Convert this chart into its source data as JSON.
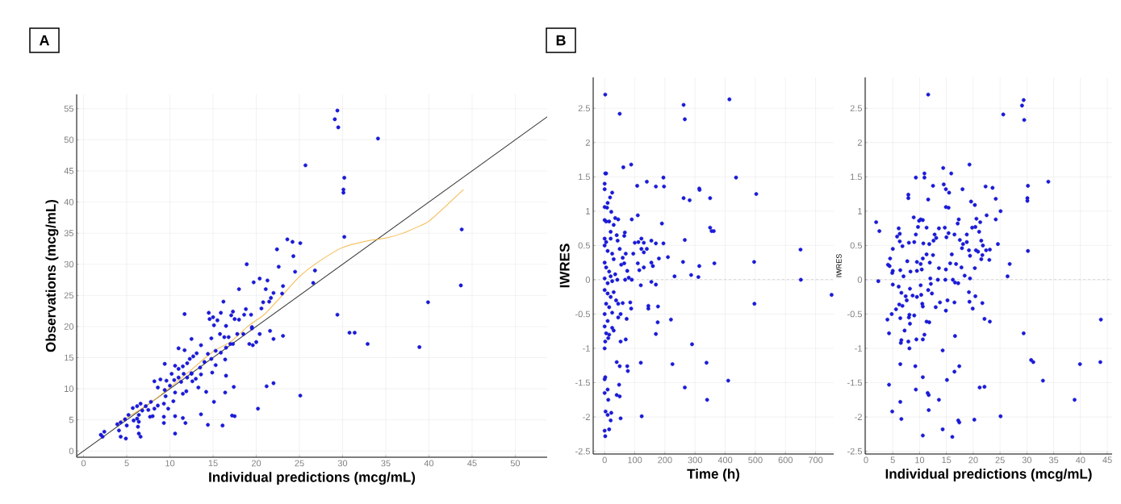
{
  "chart_data": [
    {
      "type": "scatter",
      "annotations": [
        "A"
      ],
      "xlabel": "Individual predictions (mcg/mL)",
      "ylabel": "Observations (mcg/mL)",
      "xlim": [
        -0.8,
        53.7
      ],
      "ylim": [
        -1,
        57.3
      ],
      "xticks": [
        0,
        5,
        10,
        15,
        20,
        25,
        30,
        35,
        40,
        45,
        50
      ],
      "yticks": [
        0,
        5,
        10,
        15,
        20,
        25,
        30,
        35,
        40,
        45,
        50,
        55
      ],
      "grid": true,
      "series": [
        {
          "type": "scatter",
          "marker": "circle",
          "color": "#1a1ad6",
          "x": [
            29.4,
            29.1,
            29.5,
            34.1,
            25.7,
            30.2,
            30.1,
            30.1,
            30.2,
            43.8,
            43.7,
            39.9,
            29.4,
            30.8,
            31.4,
            32.9,
            38.9,
            25.1,
            22,
            21.2,
            20.2,
            26.6,
            26.8,
            24.5,
            25.1,
            24.2,
            23.6,
            24.3,
            22.4,
            22.6,
            23.1,
            23,
            22,
            21.3,
            21.1,
            20.4,
            19.7,
            18.9,
            21.7,
            21.5,
            20.8,
            20.6,
            21.6,
            22,
            23.1,
            20.4,
            20,
            19.6,
            19.2,
            19.5,
            19.4,
            18.8,
            18.6,
            18,
            17.3,
            17.1,
            16.5,
            15.9,
            15.5,
            14.5,
            14.6,
            15,
            15.1,
            16.2,
            14.8,
            15.8,
            16.3,
            16.8,
            17.5,
            18,
            17.8,
            17.3,
            16.5,
            15.9,
            14.8,
            14.4,
            15.3,
            14.9,
            16.4,
            16.5,
            16.4,
            15.1,
            14.2,
            13.6,
            13.3,
            14.4,
            13.6,
            16.1,
            17.2,
            17.5,
            17.4,
            11.7,
            11.7,
            11,
            12.5,
            13.1,
            12.7,
            13.6,
            12.3,
            12,
            11.5,
            11,
            10.6,
            10.2,
            9.4,
            9.6,
            8.9,
            8.2,
            8.6,
            9.4,
            10,
            10.5,
            11,
            11.6,
            12,
            12.5,
            13,
            12.6,
            11.5,
            11.9,
            10.6,
            10.4,
            9.5,
            9.8,
            9.3,
            8.6,
            8.2,
            7.8,
            7.5,
            7.2,
            6.8,
            6.6,
            6.2,
            6.4,
            6.2,
            5.7,
            5.2,
            4.8,
            4.3,
            3.9,
            4.1,
            4.3,
            4.9,
            5,
            6.3,
            6.4,
            6.6,
            6.4,
            5.8,
            9.3,
            9.3,
            10.6,
            11.5,
            11.8,
            10.6,
            8,
            7.7,
            2,
            2.4,
            2.2,
            12.5,
            11.3,
            13.5,
            14,
            15.3,
            17,
            18.5,
            19.5
          ],
          "values": [
            54.7,
            53.3,
            52,
            50.2,
            45.9,
            43.9,
            42,
            41.5,
            34.4,
            35.6,
            26.6,
            23.9,
            21.9,
            19,
            19,
            17.2,
            16.7,
            8.9,
            10.9,
            10.4,
            6.8,
            27,
            29,
            28.8,
            33.4,
            33.6,
            34,
            31.3,
            32.4,
            29.6,
            26.5,
            25.3,
            25.4,
            27.4,
            26,
            27.7,
            27.1,
            30,
            24.6,
            24,
            23.9,
            22.9,
            19.3,
            18,
            18.5,
            18.8,
            17.5,
            17,
            17.2,
            19.7,
            21.9,
            22.8,
            21.9,
            26,
            22.4,
            21.8,
            20.1,
            22.2,
            21,
            22.2,
            21.2,
            21.5,
            20.2,
            24,
            18.1,
            18.8,
            18.3,
            18.3,
            21.2,
            21.1,
            18.8,
            17.2,
            16.6,
            15.8,
            14.8,
            15.6,
            13.8,
            12.6,
            14.7,
            12.1,
            9.4,
            7.9,
            9.5,
            12.3,
            10.2,
            4.2,
            5.9,
            4.1,
            5.7,
            5.6,
            10.3,
            22,
            16.2,
            16.5,
            18,
            15.7,
            15.2,
            17,
            14.8,
            14.1,
            13.6,
            13.2,
            13.7,
            12.4,
            14,
            11.3,
            11.5,
            11.2,
            10.2,
            9.8,
            10.5,
            11.4,
            11.8,
            12.4,
            11.8,
            12.5,
            11.6,
            11.2,
            9.2,
            9.6,
            9.4,
            8,
            8.8,
            6.8,
            7.6,
            7.3,
            6.8,
            7.9,
            6.6,
            7.2,
            6.5,
            7.6,
            7.2,
            5.8,
            5.2,
            6.9,
            5.8,
            5.1,
            4.6,
            4.3,
            3.3,
            2.3,
            2,
            4.1,
            3.9,
            2.8,
            2.3,
            4.7,
            4.9,
            5.5,
            4.5,
            5.6,
            5.3,
            4.5,
            2.8,
            5.6,
            5.5,
            2.6,
            3.1,
            2.3,
            12.4,
            11.1,
            13.4,
            14.3,
            16.1,
            17.2,
            18.8,
            19.9
          ]
        },
        {
          "type": "line",
          "color": "#333333",
          "x": [
            -0.8,
            53.7
          ],
          "values": [
            -0.8,
            53.7
          ]
        },
        {
          "type": "line",
          "color": "#f5b84a",
          "x": [
            4,
            8,
            12,
            15,
            17,
            19,
            20,
            21,
            23,
            25,
            27,
            30,
            33,
            35,
            37,
            39,
            40,
            42,
            44
          ],
          "values": [
            4.5,
            8,
            12.5,
            16,
            17.5,
            20,
            21,
            22,
            25,
            28,
            30.2,
            32.7,
            33.8,
            34.2,
            35,
            36.2,
            36.9,
            39.4,
            42
          ]
        }
      ]
    },
    {
      "type": "scatter",
      "annotations": [
        "B"
      ],
      "xlabel": "Time (h)",
      "ylabel": "IWRES",
      "xlim": [
        -38,
        760
      ],
      "ylim": [
        -2.54,
        2.95
      ],
      "xticks": [
        0,
        100,
        200,
        300,
        400,
        500,
        600,
        700
      ],
      "yticks": [
        -2.5,
        -2,
        -1.5,
        -1,
        -0.5,
        0,
        0.5,
        1,
        1.5,
        2,
        2.5
      ],
      "grid": true,
      "marker": "circle",
      "color": "#1a1ad6",
      "ref_lines": [
        {
          "axis": "y",
          "value": 0,
          "line_style": "dashed",
          "color": "#555555"
        }
      ],
      "x": [
        2,
        50,
        262,
        266,
        414,
        62,
        88,
        2,
        5,
        140,
        195,
        436,
        108,
        170,
        197,
        314,
        315,
        262,
        282,
        350,
        503,
        0,
        0,
        25,
        18,
        10,
        8,
        0,
        22,
        35,
        45,
        90,
        110,
        190,
        350,
        355,
        362,
        0,
        5,
        15,
        30,
        20,
        40,
        67,
        65,
        43,
        20,
        5,
        0,
        100,
        112,
        122,
        130,
        155,
        170,
        195,
        266,
        140,
        122,
        130,
        650,
        95,
        155,
        180,
        210,
        260,
        314,
        364,
        496,
        160,
        130,
        110,
        115,
        65,
        60,
        70,
        50,
        0,
        10,
        25,
        30,
        0,
        5,
        15,
        20,
        35,
        55,
        75,
        80,
        0,
        10,
        25,
        42,
        68,
        90,
        155,
        170,
        232,
        287,
        311,
        651,
        120,
        0,
        10,
        20,
        30,
        38,
        5,
        15,
        0,
        25,
        45,
        60,
        85,
        88,
        145,
        145,
        177,
        176,
        220,
        170,
        497,
        0,
        25,
        10,
        45,
        53,
        73,
        5,
        15,
        30,
        2,
        0,
        12,
        53,
        70,
        290,
        0,
        2,
        10,
        12,
        0,
        3,
        0,
        2,
        15,
        20,
        10,
        22,
        40,
        50,
        48,
        40,
        50,
        75,
        77,
        120,
        225,
        338,
        410,
        266,
        340,
        123,
        53,
        753
      ],
      "values": [
        2.7,
        2.42,
        2.55,
        2.34,
        2.63,
        1.64,
        1.68,
        1.55,
        1.55,
        1.43,
        1.49,
        1.49,
        1.37,
        1.36,
        1.36,
        1.33,
        1.31,
        1.19,
        1.16,
        1.19,
        1.25,
        1.4,
        1.32,
        1.27,
        1.2,
        1.12,
        1.05,
        1.06,
        0.99,
        0.9,
        0.88,
        0.88,
        0.94,
        0.82,
        0.76,
        0.71,
        0.71,
        0.87,
        0.85,
        0.85,
        0.8,
        0.7,
        0.65,
        0.69,
        0.64,
        0.57,
        0.6,
        0.55,
        0.6,
        0.54,
        0.55,
        0.6,
        0.54,
        0.57,
        0.53,
        0.53,
        0.58,
        0.45,
        0.45,
        0.4,
        0.44,
        0.38,
        0.25,
        0.31,
        0.33,
        0.26,
        0.2,
        0.24,
        0.26,
        0.2,
        0.18,
        0.24,
        0.14,
        0.24,
        0.32,
        0.38,
        0.45,
        0.5,
        0.42,
        0.38,
        0.3,
        0.25,
        0.18,
        0.12,
        0.05,
        0.08,
        0.22,
        0.13,
        0.03,
        0.02,
        -0.05,
        -0.02,
        0,
        0,
        0,
        -0.03,
        -0.07,
        0.05,
        0.07,
        0.04,
        0,
        -0.08,
        -0.15,
        -0.2,
        -0.25,
        -0.18,
        -0.3,
        -0.35,
        -0.4,
        -0.5,
        -0.48,
        -0.35,
        -0.34,
        -0.33,
        -0.42,
        -0.42,
        -0.38,
        -0.39,
        -0.62,
        -0.58,
        -0.79,
        -0.35,
        -0.68,
        -0.7,
        -0.6,
        -0.55,
        -0.5,
        -0.57,
        -0.78,
        -0.8,
        -0.74,
        -0.9,
        -1,
        -0.85,
        -0.9,
        -0.87,
        -0.94,
        -1.45,
        -1.42,
        -1.6,
        -1.75,
        -1.65,
        -1.92,
        -2.2,
        -2.28,
        -2.18,
        -2.05,
        -1.97,
        -1.94,
        -1.68,
        -1.7,
        -1.53,
        -1.2,
        -1.26,
        -1.26,
        -1.33,
        -1.21,
        -1.23,
        -1.21,
        -1.47,
        -1.57,
        -1.75,
        -1.99,
        -2.02,
        -0.22
      ]
    },
    {
      "type": "scatter",
      "xlabel": "Individual predictions (mcg/mL)",
      "ylabel": "IWRES",
      "xlim": [
        -0.15,
        45.9
      ],
      "ylim": [
        -2.54,
        2.95
      ],
      "xticks": [
        0,
        5,
        10,
        15,
        20,
        25,
        30,
        35,
        40,
        45
      ],
      "yticks": [
        -2.5,
        -2,
        -1.5,
        -1,
        -0.5,
        0,
        0.5,
        1,
        1.5,
        2,
        2.5
      ],
      "grid": true,
      "marker": "circle",
      "color": "#1a1ad6",
      "ref_lines": [
        {
          "axis": "y",
          "value": 0,
          "line_style": "dashed",
          "color": "#555555"
        }
      ],
      "x": [
        11.6,
        29.4,
        29.1,
        25.6,
        29.5,
        19.3,
        14.4,
        15.9,
        10.9,
        10.9,
        9.3,
        34,
        30.2,
        12.5,
        22.3,
        23.6,
        14.5,
        18,
        14.9,
        15.5,
        7.9,
        7.9,
        30.1,
        30.1,
        24.2,
        11.6,
        19.6,
        20.3,
        14.9,
        15.4,
        25.1,
        22.5,
        8.9,
        10.2,
        10.6,
        9.9,
        17.3,
        20.6,
        21.3,
        24.2,
        1.9,
        2.5,
        6.1,
        9.7,
        11.3,
        13.6,
        14.7,
        17.1,
        19.8,
        20.4,
        21.1,
        6.3,
        5.8,
        9.3,
        12.8,
        15.4,
        16.5,
        18.8,
        13.1,
        15,
        17.5,
        21.5,
        24.6,
        30.2,
        8,
        9,
        10.7,
        11.8,
        12.6,
        6.3,
        6.8,
        5,
        18.1,
        18.8,
        20.5,
        21.8,
        22.4,
        23.1,
        17.9,
        19.2,
        20.9,
        21.7,
        19.4,
        21.5,
        23,
        16,
        11.3,
        12.5,
        10.6,
        9.5,
        7.7,
        4.5,
        4.1,
        4.4,
        11.9,
        10.2,
        13.6,
        14.9,
        15.7,
        16.8,
        17.8,
        26.8,
        26.4,
        18.4,
        20.3,
        8.3,
        9.5,
        10.4,
        5,
        4.9,
        6.4,
        7,
        12,
        13.4,
        14.8,
        16.2,
        16.6,
        17.2,
        19.4,
        2.3,
        5,
        6.1,
        6.6,
        7.4,
        8.2,
        8.7,
        9.5,
        10.3,
        10.2,
        11.6,
        12.1,
        12.3,
        13.8,
        13,
        14.9,
        15.2,
        16.5,
        19.2,
        19.3,
        20.4,
        19.9,
        21.7,
        6.2,
        6.8,
        7.6,
        8.1,
        9,
        10.5,
        10.6,
        5.6,
        4.8,
        4,
        6.4,
        8,
        7.2,
        8.2,
        11.3,
        11.8,
        22.1,
        23.1,
        4.3,
        6.5,
        6.6,
        7.9,
        8.1,
        9.4,
        10.6,
        10.9,
        16.6,
        29.4,
        43.8,
        14.3,
        6.4,
        9.2,
        17.4,
        16.5,
        10.6,
        15.1,
        30.8,
        31.2,
        33,
        39.9,
        43.7,
        4.3,
        9.3,
        11.5,
        11.7,
        21.2,
        22.1,
        13.6,
        38.9,
        6.4,
        11.7,
        4.9,
        6.6,
        25.1,
        17.2,
        17.4,
        20.2,
        14.3,
        10.6,
        16.1
      ],
      "values": [
        2.7,
        2.62,
        2.54,
        2.41,
        2.33,
        1.68,
        1.63,
        1.55,
        1.55,
        1.49,
        1.49,
        1.43,
        1.37,
        1.37,
        1.36,
        1.34,
        1.39,
        1.32,
        1.32,
        1.27,
        1.24,
        1.19,
        1.19,
        1.15,
        1.18,
        1.17,
        1.14,
        1.09,
        1.06,
        1.05,
        1,
        0.94,
        0.91,
        0.88,
        0.87,
        0.86,
        0.88,
        0.89,
        0.84,
        0.88,
        0.84,
        0.71,
        0.75,
        0.77,
        0.76,
        0.75,
        0.76,
        0.82,
        0.76,
        0.77,
        0.7,
        0.67,
        0.63,
        0.66,
        0.66,
        0.68,
        0.66,
        0.66,
        0.61,
        0.62,
        0.58,
        0.57,
        0.52,
        0.42,
        0.54,
        0.55,
        0.53,
        0.52,
        0.57,
        0.56,
        0.49,
        0.45,
        0.52,
        0.55,
        0.43,
        0.5,
        0.43,
        0.44,
        0.46,
        0.43,
        0.41,
        0.36,
        0.35,
        0.3,
        0.29,
        0.37,
        0.37,
        0.36,
        0.31,
        0.26,
        0.27,
        0.31,
        0.22,
        0.2,
        0.25,
        0.23,
        0.17,
        0.15,
        0.24,
        0.23,
        0.18,
        0.23,
        0.05,
        0.06,
        0.17,
        0.12,
        0.13,
        0.15,
        0.13,
        0.1,
        0.14,
        0.05,
        0.02,
        0,
        0,
        0,
        -0.04,
        -0.05,
        0.02,
        -0.02,
        -0.07,
        -0.1,
        -0.19,
        -0.24,
        -0.13,
        -0.23,
        -0.25,
        -0.22,
        -0.08,
        -0.15,
        -0.06,
        -0.2,
        -0.33,
        -0.4,
        -0.45,
        -0.3,
        -0.33,
        -0.18,
        -0.32,
        -0.24,
        -0.42,
        -0.34,
        -0.36,
        -0.38,
        -0.3,
        -0.51,
        -0.52,
        -0.35,
        -0.39,
        -0.43,
        -0.5,
        -0.58,
        -0.56,
        -0.55,
        -0.74,
        -0.64,
        -0.61,
        -0.62,
        -0.57,
        -0.61,
        -0.78,
        -0.92,
        -0.88,
        -0.9,
        -1,
        -0.87,
        -0.87,
        -0.8,
        -0.82,
        -0.78,
        -0.58,
        -1.03,
        -1.23,
        -1.26,
        -1.26,
        -1.34,
        -1.42,
        -1.46,
        -1.17,
        -1.2,
        -1.47,
        -1.23,
        -1.2,
        -1.53,
        -1.6,
        -1.65,
        -1.68,
        -1.57,
        -1.56,
        -1.75,
        -1.75,
        -1.78,
        -1.9,
        -1.92,
        -2.03,
        -1.99,
        -2.05,
        -2.08,
        -2.04,
        -2.18,
        -2.27,
        -2.29
      ]
    }
  ]
}
